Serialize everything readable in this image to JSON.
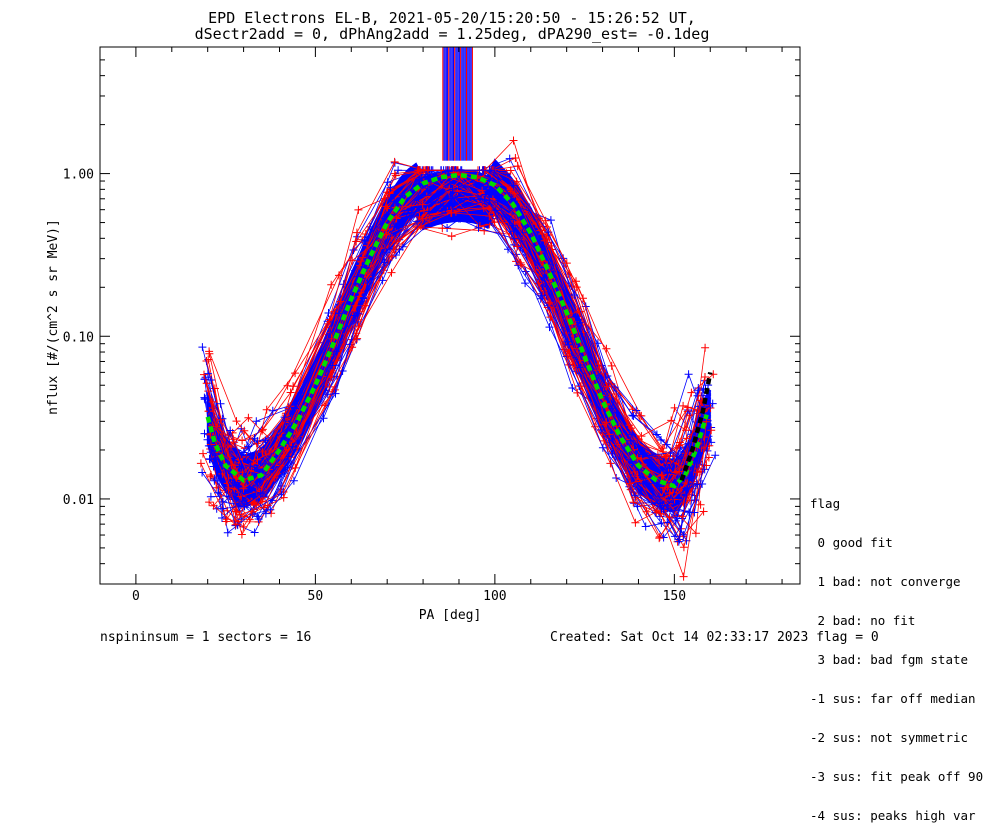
{
  "chart_data": {
    "type": "line",
    "title_line1": "EPD Electrons EL-B, 2021-05-20/15:20:50 - 15:26:52 UT,",
    "title_line2": "dSectr2add = 0, dPhAng2add = 1.25deg, dPA290_est=  -0.1deg",
    "xlabel": "PA [deg]",
    "ylabel": "nflux [#/(cm^2 s sr MeV)]",
    "xlim": [
      -10,
      185
    ],
    "ylim": [
      0.003,
      6
    ],
    "yscale": "log",
    "xticks": [
      "0",
      "50",
      "100",
      "150"
    ],
    "xtick_values": [
      0,
      50,
      100,
      150
    ],
    "yticks": [
      "0.01",
      "0.10",
      "1.00"
    ],
    "ytick_values": [
      0.01,
      0.1,
      1.0
    ],
    "series": [
      {
        "color": "#00dd00",
        "style": "dashed-thick",
        "x": [
          20,
          22,
          25,
          30,
          35,
          40,
          45,
          50,
          55,
          60,
          65,
          70,
          75,
          80,
          85,
          90,
          95,
          100,
          105,
          110,
          115,
          120,
          125,
          130,
          135,
          140,
          145,
          150,
          153,
          156,
          159
        ],
        "y": [
          0.032,
          0.022,
          0.016,
          0.013,
          0.014,
          0.02,
          0.03,
          0.05,
          0.09,
          0.17,
          0.3,
          0.5,
          0.72,
          0.87,
          0.95,
          0.98,
          0.95,
          0.85,
          0.65,
          0.43,
          0.25,
          0.14,
          0.075,
          0.04,
          0.024,
          0.016,
          0.013,
          0.012,
          0.014,
          0.02,
          0.033
        ]
      },
      {
        "color": "#000000",
        "style": "dashed-thick",
        "x": [
          152,
          155,
          158,
          160
        ],
        "y": [
          0.013,
          0.02,
          0.035,
          0.06
        ]
      }
    ],
    "fit_band_color": "#0000ff",
    "data_colors": [
      "#ff0000",
      "#0000ff"
    ],
    "notes": [
      "many overlapping blue and red traces with plus markers"
    ]
  },
  "legend": {
    "title": "flag",
    "items": [
      " 0 good fit",
      " 1 bad: not converge",
      " 2 bad: no fit",
      " 3 bad: bad fgm state",
      "-1 sus: far off median",
      "-2 sus: not symmetric",
      "-3 sus: fit peak off 90",
      "-4 sus: peaks high var"
    ]
  },
  "footer": {
    "left": "nspininsum =  1  sectors = 16",
    "right": "Created: Sat Oct 14 02:33:17 2023   flag = 0"
  }
}
